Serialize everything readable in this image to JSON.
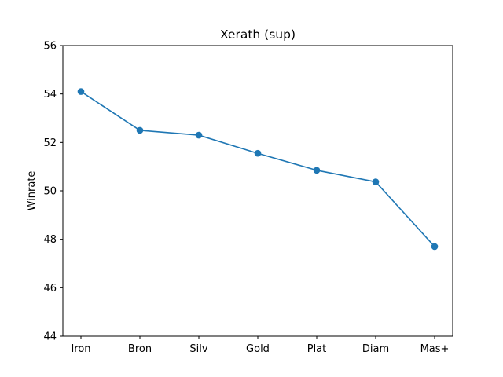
{
  "chart_data": {
    "type": "line",
    "title": "Xerath (sup)",
    "xlabel": "",
    "ylabel": "Winrate",
    "categories": [
      "Iron",
      "Bron",
      "Silv",
      "Gold",
      "Plat",
      "Diam",
      "Mas+"
    ],
    "series": [
      {
        "values": [
          54.1,
          52.5,
          52.3,
          51.55,
          50.85,
          50.37,
          47.7
        ],
        "color": "#1f77b4"
      }
    ],
    "ylim": [
      44,
      56
    ],
    "yticks": [
      44,
      46,
      48,
      50,
      52,
      54,
      56
    ],
    "grid": false,
    "legend": "none"
  }
}
